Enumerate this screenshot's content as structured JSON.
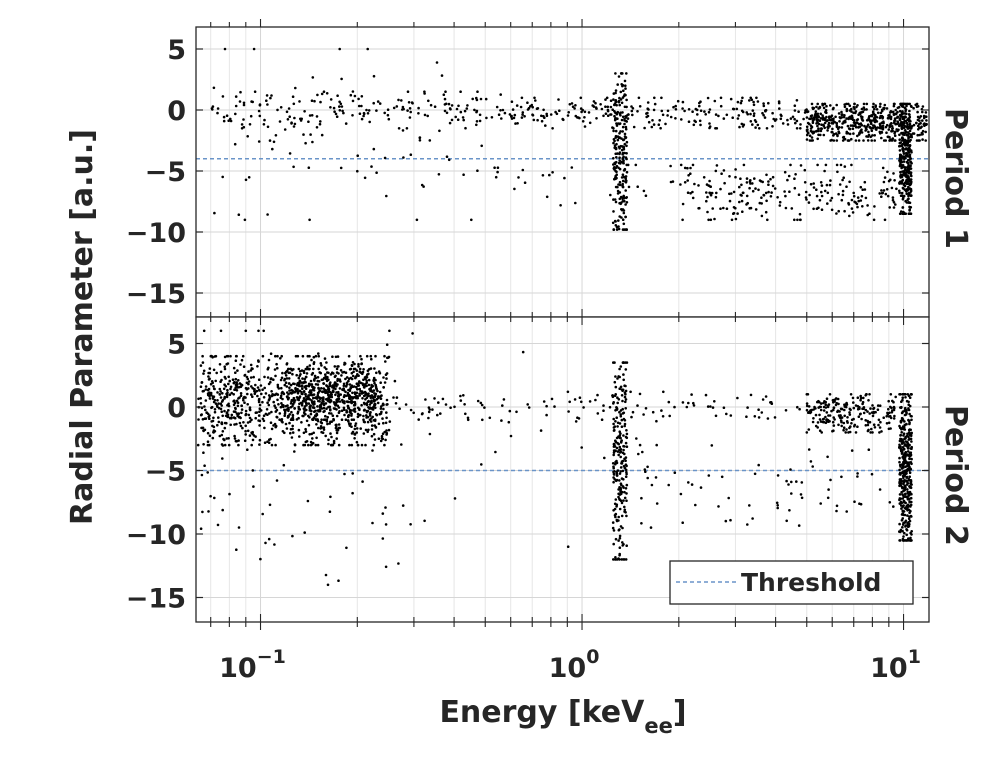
{
  "chart_data": {
    "type": "scatter",
    "xlabel": "Energy [keV",
    "xlabel_sub": "ee",
    "xlabel_close": "]",
    "ylabel": "Radial Parameter [a.u.]",
    "x_scale": "log",
    "xlim": [
      0.063,
      12.0
    ],
    "x_ticks": [
      0.1,
      1,
      10
    ],
    "x_tick_labels": [
      {
        "base": "10",
        "exp": "−1"
      },
      {
        "base": "10",
        "exp": "0"
      },
      {
        "base": "10",
        "exp": "1"
      }
    ],
    "ylim": [
      -17,
      7
    ],
    "y_ticks": [
      5,
      0,
      -5,
      -10,
      -15
    ],
    "y_tick_labels": [
      "5",
      "0",
      "−5",
      "−10",
      "−15"
    ],
    "grid": true,
    "legend": {
      "placement": "bottom-right",
      "panel": 2,
      "entries": [
        "Threshold"
      ]
    },
    "panels": [
      {
        "label": "Period 1",
        "threshold": -4,
        "series": [
          {
            "name": "Threshold",
            "type": "line",
            "color": "#6a94c8",
            "style": "dashed",
            "y": -4
          },
          {
            "type": "scatter",
            "color": "#000000",
            "clusters": [
              {
                "x": [
                  0.07,
                  0.6
                ],
                "y": [
                  -1.5,
                  1.5
                ],
                "n": 160
              },
              {
                "x": [
                  0.6,
                  5
                ],
                "y": [
                  -1.5,
                  1
                ],
                "n": 260
              },
              {
                "x": [
                  5,
                  9.6
                ],
                "y": [
                  -2.5,
                  0.5
                ],
                "n": 420
              },
              {
                "x": [
                  9.6,
                  11.8
                ],
                "y": [
                  -2.5,
                  0.5
                ],
                "n": 90
              },
              {
                "x": [
                  0.07,
                  0.5
                ],
                "y": [
                  -9,
                  5
                ],
                "n": 90
              },
              {
                "x": [
                  2,
                  9.5
                ],
                "y": [
                  -9,
                  -4.5
                ],
                "n": 240
              },
              {
                "x": [
                  0.5,
                  2
                ],
                "y": [
                  -8,
                  -4.5
                ],
                "n": 30
              },
              {
                "x": [
                  1.25,
                  1.38
                ],
                "y": [
                  -9.8,
                  3
                ],
                "n": 210
              },
              {
                "x": [
                  9.7,
                  10.6
                ],
                "y": [
                  -8.5,
                  0.5
                ],
                "n": 320
              }
            ]
          }
        ]
      },
      {
        "label": "Period 2",
        "threshold": -5,
        "series": [
          {
            "name": "Threshold",
            "type": "line",
            "color": "#6a94c8",
            "style": "dashed",
            "y": -5
          },
          {
            "type": "scatter",
            "color": "#000000",
            "clusters": [
              {
                "x": [
                  0.064,
                  0.25
                ],
                "y": [
                  -3,
                  4
                ],
                "n": 900
              },
              {
                "x": [
                  0.12,
                  0.23
                ],
                "y": [
                  -1,
                  3
                ],
                "n": 420
              },
              {
                "x": [
                  0.064,
                  0.3
                ],
                "y": [
                  -14,
                  6
                ],
                "n": 90
              },
              {
                "x": [
                  0.25,
                  5
                ],
                "y": [
                  -1.2,
                  1.2
                ],
                "n": 120
              },
              {
                "x": [
                  5,
                  9.5
                ],
                "y": [
                  -2,
                  1
                ],
                "n": 220
              },
              {
                "x": [
                  1.5,
                  9.5
                ],
                "y": [
                  -9.5,
                  -3
                ],
                "n": 70
              },
              {
                "x": [
                  0.3,
                  2
                ],
                "y": [
                  -11,
                  4.5
                ],
                "n": 18
              },
              {
                "x": [
                  1.25,
                  1.38
                ],
                "y": [
                  -12,
                  3.5
                ],
                "n": 230
              },
              {
                "x": [
                  9.7,
                  10.6
                ],
                "y": [
                  -10.5,
                  1
                ],
                "n": 380
              }
            ]
          }
        ]
      }
    ]
  }
}
